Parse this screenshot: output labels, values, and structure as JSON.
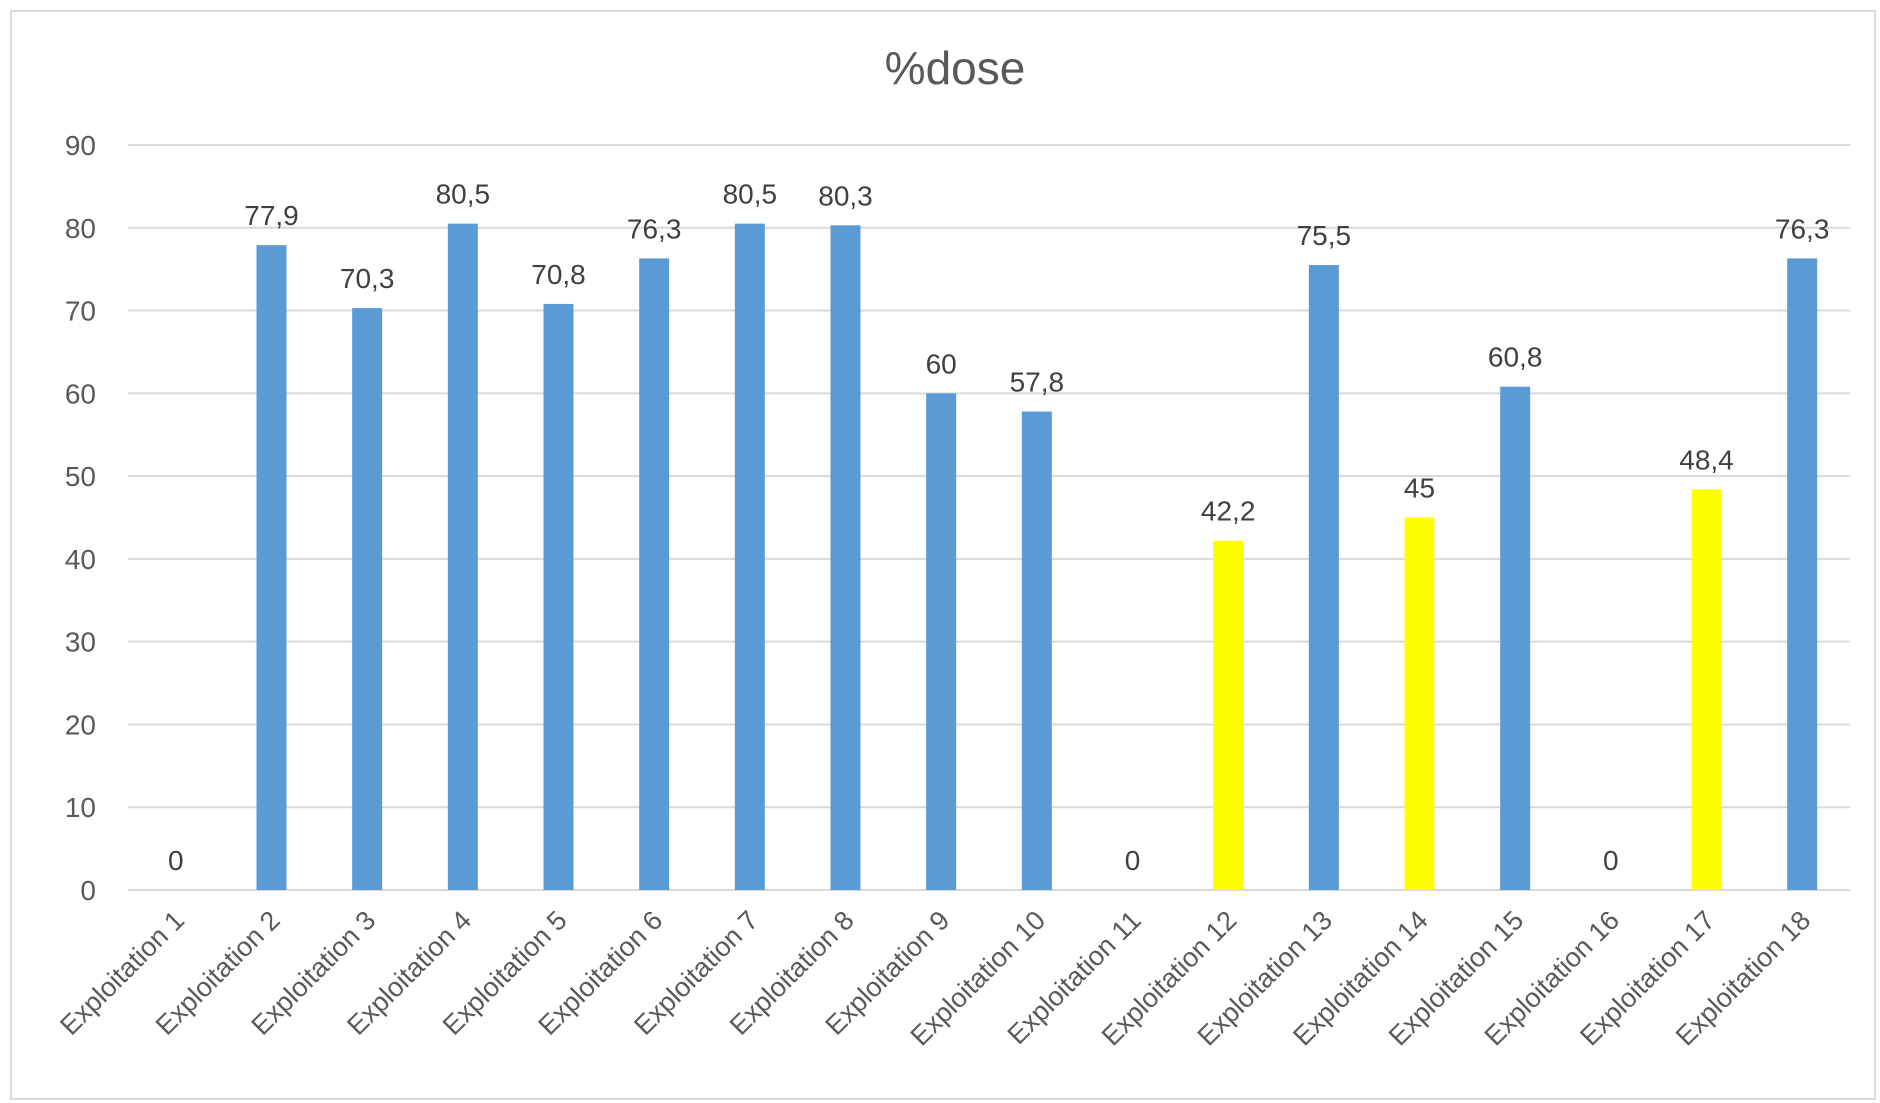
{
  "chart_data": {
    "type": "bar",
    "title": "%dose",
    "xlabel": "",
    "ylabel": "",
    "ylim": [
      0,
      90
    ],
    "yticks": [
      0,
      10,
      20,
      30,
      40,
      50,
      60,
      70,
      80,
      90
    ],
    "grid": true,
    "legend": "none",
    "categories": [
      "Exploitation 1",
      "Exploitation 2",
      "Exploitation 3",
      "Exploitation 4",
      "Exploitation 5",
      "Exploitation 6",
      "Exploitation 7",
      "Exploitation 8",
      "Exploitation 9",
      "Exploitation 10",
      "Exploitation 11",
      "Exploitation 12",
      "Exploitation 13",
      "Exploitation 14",
      "Exploitation 15",
      "Exploitation 16",
      "Exploitation 17",
      "Exploitation 18"
    ],
    "values": [
      0,
      77.9,
      70.3,
      80.5,
      70.8,
      76.3,
      80.5,
      80.3,
      60,
      57.8,
      0,
      42.2,
      75.5,
      45,
      60.8,
      0,
      48.4,
      76.3
    ],
    "data_labels": [
      "0",
      "77,9",
      "70,3",
      "80,5",
      "70,8",
      "76,3",
      "80,5",
      "80,3",
      "60",
      "57,8",
      "0",
      "42,2",
      "75,5",
      "45",
      "60,8",
      "0",
      "48,4",
      "76,3"
    ],
    "bar_colors": [
      "#5b9bd5",
      "#5b9bd5",
      "#5b9bd5",
      "#5b9bd5",
      "#5b9bd5",
      "#5b9bd5",
      "#5b9bd5",
      "#5b9bd5",
      "#5b9bd5",
      "#5b9bd5",
      "#5b9bd5",
      "#ffff00",
      "#5b9bd5",
      "#ffff00",
      "#5b9bd5",
      "#5b9bd5",
      "#ffff00",
      "#5b9bd5"
    ],
    "colors": {
      "bar": "#5b9bd5",
      "highlight": "#ffff00",
      "grid": "#d9d9d9",
      "text": "#595959"
    }
  }
}
